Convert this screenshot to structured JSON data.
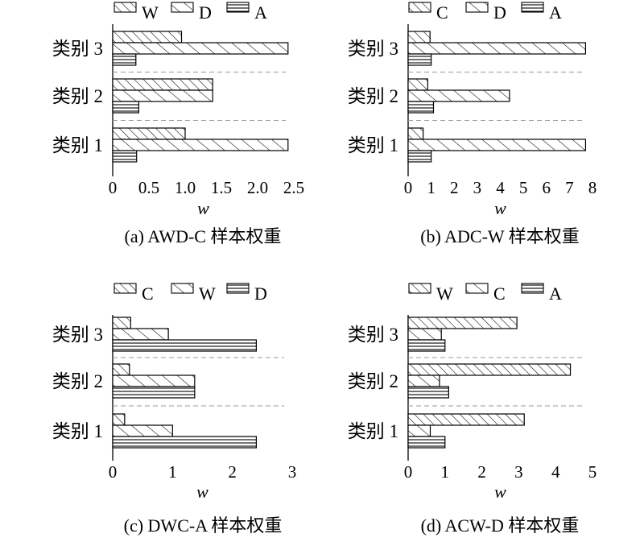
{
  "chart_data": [
    {
      "type": "bar",
      "orientation": "horizontal",
      "caption": "(a) AWD-C 样本权重",
      "xlabel": "w",
      "xlim": [
        0,
        2.5
      ],
      "xticks": [
        "0",
        "0.5",
        "1.0",
        "1.5",
        "2.0",
        "2.5"
      ],
      "categories": [
        "类别 1",
        "类别 2",
        "类别 3"
      ],
      "legend_position": "top",
      "series": [
        {
          "name": "W",
          "pattern": "hatch-dense",
          "values": [
            1.0,
            1.38,
            0.95
          ]
        },
        {
          "name": "D",
          "pattern": "hatch-sparse",
          "values": [
            2.42,
            1.38,
            2.42
          ]
        },
        {
          "name": "A",
          "pattern": "horizontal-lines",
          "values": [
            0.33,
            0.36,
            0.32
          ]
        }
      ]
    },
    {
      "type": "bar",
      "orientation": "horizontal",
      "caption": "(b) ADC-W 样本权重",
      "xlabel": "w",
      "xlim": [
        0,
        8
      ],
      "xticks": [
        "0",
        "1",
        "2",
        "3",
        "4",
        "5",
        "6",
        "7",
        "8"
      ],
      "categories": [
        "类别 1",
        "类别 2",
        "类别 3"
      ],
      "legend_position": "top",
      "series": [
        {
          "name": "C",
          "pattern": "hatch-dense",
          "values": [
            0.65,
            0.85,
            0.95
          ]
        },
        {
          "name": "D",
          "pattern": "hatch-sparse",
          "values": [
            7.7,
            4.4,
            7.7
          ]
        },
        {
          "name": "A",
          "pattern": "horizontal-lines",
          "values": [
            1.0,
            1.1,
            1.0
          ]
        }
      ]
    },
    {
      "type": "bar",
      "orientation": "horizontal",
      "caption": "(c) DWC-A 样本权重",
      "xlabel": "w",
      "xlim": [
        0,
        3
      ],
      "xticks": [
        "0",
        "1",
        "2",
        "3"
      ],
      "categories": [
        "类别 1",
        "类别 2",
        "类别 3"
      ],
      "legend_position": "top",
      "series": [
        {
          "name": "C",
          "pattern": "hatch-dense",
          "values": [
            0.2,
            0.28,
            0.3
          ]
        },
        {
          "name": "W",
          "pattern": "hatch-sparse",
          "values": [
            1.0,
            1.37,
            0.93
          ]
        },
        {
          "name": "D",
          "pattern": "horizontal-lines",
          "values": [
            2.4,
            1.37,
            2.4
          ]
        }
      ]
    },
    {
      "type": "bar",
      "orientation": "horizontal",
      "caption": "(d) ACW-D 样本权重",
      "xlabel": "w",
      "xlim": [
        0,
        5
      ],
      "xticks": [
        "0",
        "1",
        "2",
        "3",
        "4",
        "5"
      ],
      "categories": [
        "类别 1",
        "类别 2",
        "类别 3"
      ],
      "legend_position": "top",
      "series": [
        {
          "name": "W",
          "pattern": "hatch-dense",
          "values": [
            3.15,
            4.4,
            2.95
          ]
        },
        {
          "name": "C",
          "pattern": "hatch-sparse",
          "values": [
            0.6,
            0.85,
            0.9
          ]
        },
        {
          "name": "A",
          "pattern": "horizontal-lines",
          "values": [
            1.0,
            1.1,
            1.0
          ]
        }
      ]
    }
  ]
}
